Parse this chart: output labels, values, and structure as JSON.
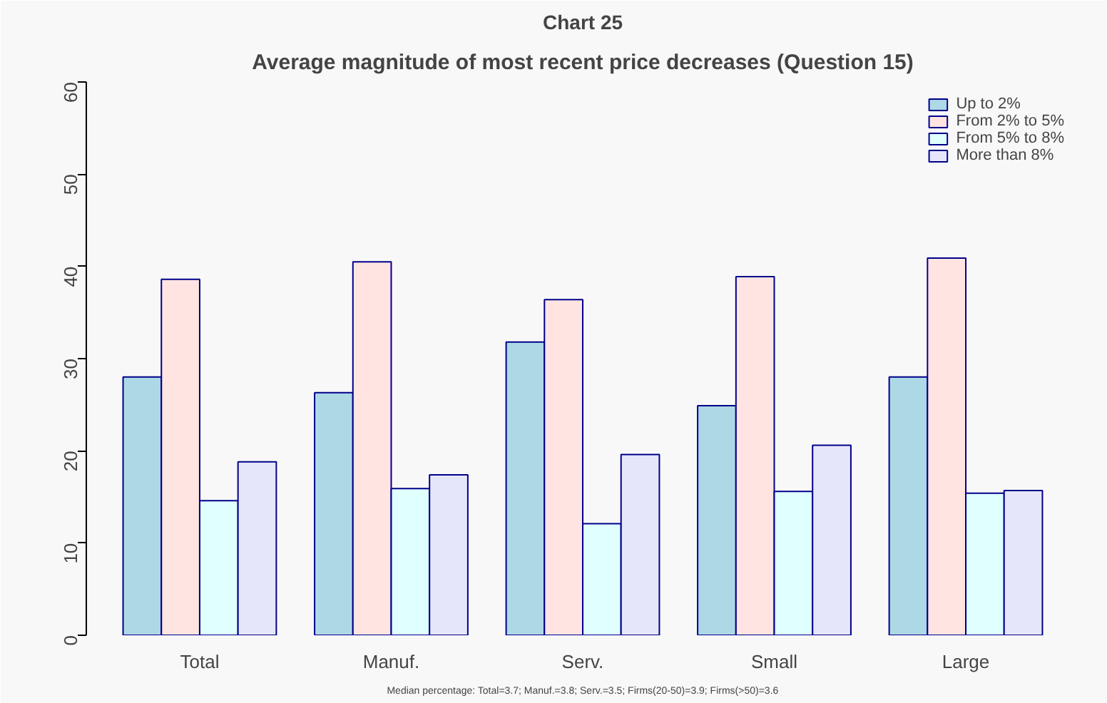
{
  "chart_data": {
    "type": "bar",
    "title": "Chart 25",
    "subtitle": "Average magnitude of most recent price decreases (Question 15)",
    "categories": [
      "Total",
      "Manuf.",
      "Serv.",
      "Small",
      "Large"
    ],
    "series": [
      {
        "name": "Up to 2%",
        "color": "#add8e6",
        "values": [
          28.0,
          26.3,
          31.8,
          24.9,
          28.0
        ]
      },
      {
        "name": "From 2% to 5%",
        "color": "#ffe4e1",
        "values": [
          38.6,
          40.5,
          36.4,
          38.9,
          40.9
        ]
      },
      {
        "name": "From 5% to 8%",
        "color": "#e0ffff",
        "values": [
          14.6,
          15.9,
          12.1,
          15.6,
          15.4
        ]
      },
      {
        "name": "More than 8%",
        "color": "#e6e6fa",
        "values": [
          18.8,
          17.4,
          19.6,
          20.6,
          15.7
        ]
      }
    ],
    "ylim": [
      0,
      60
    ],
    "yticks": [
      0,
      10,
      20,
      30,
      40,
      50,
      60
    ],
    "grid": false,
    "legend": "top right",
    "annotations": [
      "Median percentage: Total=3.7; Manuf.=3.8; Serv.=3.5; Firms(20-50)=3.9; Firms(>50)=3.6"
    ]
  }
}
